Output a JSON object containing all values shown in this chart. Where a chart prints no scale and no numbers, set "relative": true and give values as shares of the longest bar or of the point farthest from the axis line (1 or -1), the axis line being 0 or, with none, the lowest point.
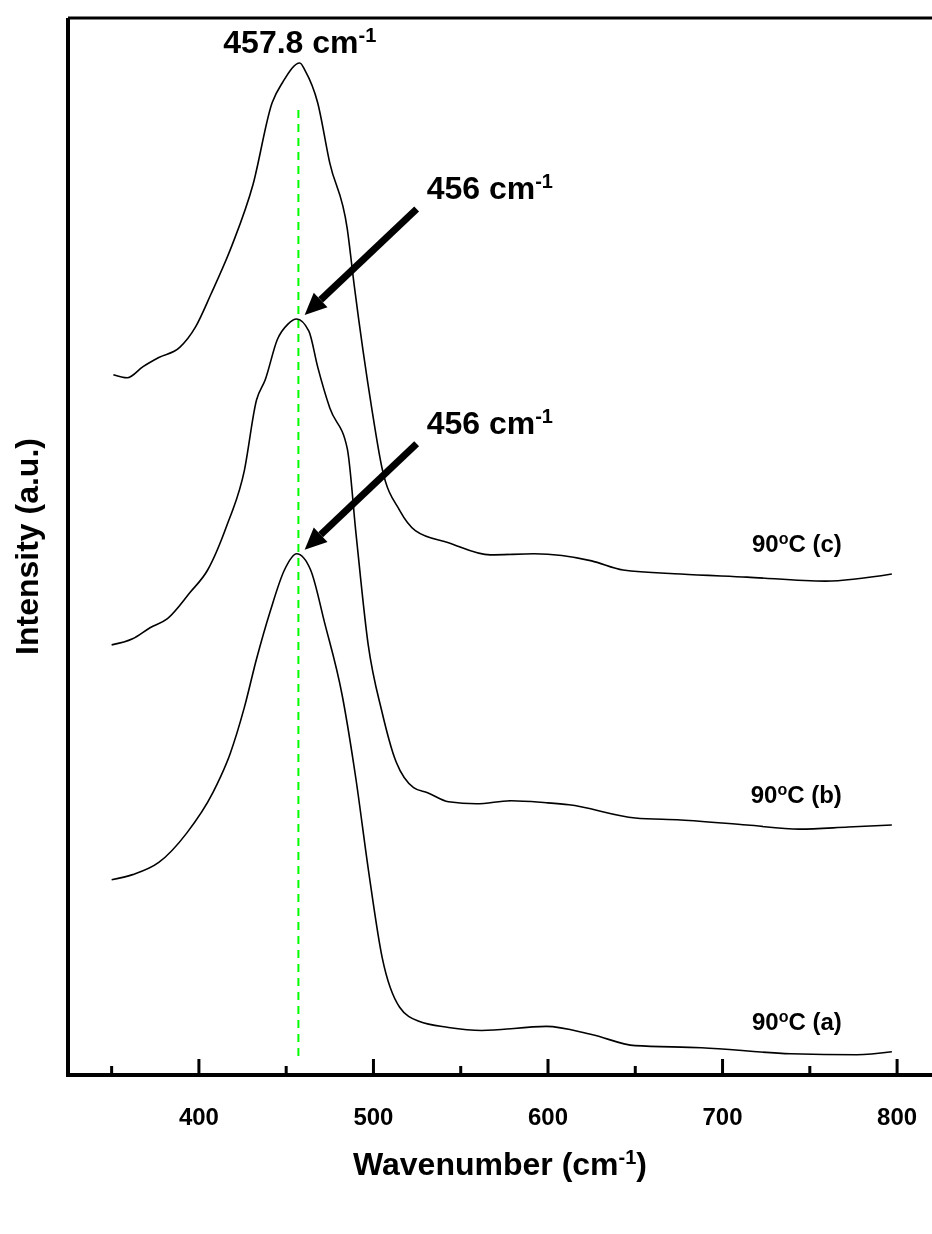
{
  "chart_data": {
    "type": "line",
    "relative": true,
    "xlabel": "Wavenumber (cm$^{-1}$)",
    "ylabel": "Intensity (a.u.)",
    "xlim": [
      325,
      820
    ],
    "xticks": [
      {
        "value": 350,
        "label": null
      },
      400,
      {
        "value": 450,
        "label": null
      },
      500,
      {
        "value": 550,
        "label": null
      },
      600,
      {
        "value": 650,
        "label": null
      },
      700,
      {
        "value": 750,
        "label": null
      },
      800
    ],
    "tick_labels": "x",
    "line_style": "solid",
    "marker": "none",
    "ref_lines": [
      {
        "axis": "x",
        "value": 457,
        "color": "#00ff00",
        "line_style": "dashed"
      }
    ],
    "annotations": [
      "457.8 cm$^{-1}$",
      "456 cm$^{-1}$",
      "456 cm$^{-1}$"
    ],
    "series": [
      {
        "name": "90$^{o}$C (a)",
        "color": "#000000",
        "x": [
          350,
          362,
          377,
          393,
          408,
          418,
          426,
          433,
          441,
          449,
          456,
          464,
          472,
          482,
          490,
          497,
          505,
          515,
          526,
          543,
          562,
          599,
          625,
          650,
          688,
          739,
          777,
          797
        ],
        "values": [
          0.193,
          0.198,
          0.21,
          0.239,
          0.279,
          0.318,
          0.363,
          0.411,
          0.459,
          0.499,
          0.515,
          0.499,
          0.447,
          0.376,
          0.292,
          0.204,
          0.116,
          0.067,
          0.053,
          0.047,
          0.044,
          0.048,
          0.04,
          0.029,
          0.027,
          0.021,
          0.02,
          0.023
        ]
      },
      {
        "name": "90$^{o}$C (b)",
        "color": "#000000",
        "x": [
          350,
          362,
          372,
          382,
          395,
          405,
          416,
          426,
          433,
          438,
          445,
          451,
          456,
          463,
          468,
          475,
          485,
          490,
          497,
          505,
          512,
          523,
          531,
          543,
          559,
          579,
          599,
          612,
          650,
          676,
          714,
          744,
          772,
          797
        ],
        "values": [
          0.425,
          0.431,
          0.442,
          0.451,
          0.477,
          0.499,
          0.543,
          0.597,
          0.667,
          0.687,
          0.727,
          0.742,
          0.747,
          0.735,
          0.7,
          0.659,
          0.619,
          0.535,
          0.425,
          0.358,
          0.314,
          0.284,
          0.279,
          0.27,
          0.268,
          0.271,
          0.269,
          0.267,
          0.254,
          0.252,
          0.247,
          0.243,
          0.245,
          0.247
        ]
      },
      {
        "name": "90$^{o}$C (c)",
        "color": "#000000",
        "x": [
          351,
          359,
          368,
          377,
          389,
          398,
          407,
          419,
          431,
          442,
          448,
          457.8,
          461,
          468,
          475,
          485,
          489,
          499,
          505,
          515,
          524,
          543,
          567,
          592,
          625,
          643,
          676,
          714,
          759,
          797
        ],
        "values": [
          0.692,
          0.689,
          0.7,
          0.709,
          0.719,
          0.739,
          0.772,
          0.82,
          0.88,
          0.961,
          0.981,
          1,
          0.992,
          0.961,
          0.901,
          0.836,
          0.78,
          0.659,
          0.599,
          0.558,
          0.538,
          0.526,
          0.514,
          0.515,
          0.508,
          0.499,
          0.495,
          0.492,
          0.488,
          0.495
        ]
      }
    ]
  }
}
